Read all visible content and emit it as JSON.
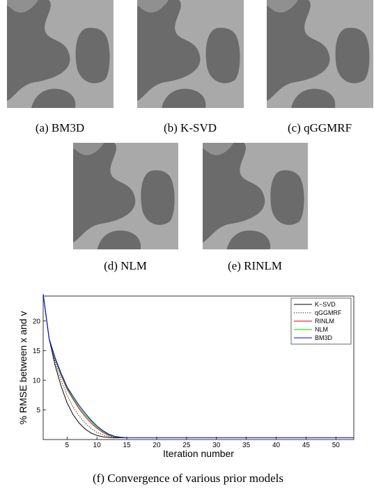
{
  "panels": [
    {
      "caption": "(a) BM3D"
    },
    {
      "caption": "(b) K-SVD"
    },
    {
      "caption": "(c) qGGMRF"
    },
    {
      "caption": "(d) NLM"
    },
    {
      "caption": "(e) RINLM"
    }
  ],
  "chart_data": {
    "type": "line",
    "caption": "(f) Convergence of various prior models",
    "x_label": "Iteration number",
    "y_label": "% RMSE between x and v",
    "x": [
      1,
      2,
      3,
      4,
      5,
      6,
      7,
      8,
      9,
      10,
      11,
      12,
      13,
      14,
      15,
      16,
      20,
      30,
      40,
      53
    ],
    "xlim": [
      1,
      53
    ],
    "ylim": [
      0,
      24.2
    ],
    "xticks": [
      5,
      10,
      15,
      20,
      25,
      30,
      35,
      40,
      45,
      50
    ],
    "yticks": [
      5,
      10,
      15,
      20
    ],
    "grid": false,
    "legend": "upper right",
    "series": [
      {
        "name": "K−SVD",
        "color": "#000000",
        "dash": "solid",
        "values": [
          24.5,
          17,
          12.5,
          9,
          6.2,
          4.2,
          2.8,
          1.8,
          1.1,
          0.7,
          0.45,
          0.35,
          0.3,
          0.3,
          0.3,
          0.3,
          0.3,
          0.3,
          0.3,
          0.3
        ]
      },
      {
        "name": "qGGMRF",
        "color": "#000000",
        "dash": "dotted",
        "values": [
          24.5,
          16.8,
          13,
          10,
          7.5,
          5.5,
          4,
          2.8,
          1.9,
          1.2,
          0.8,
          0.5,
          0.4,
          0.35,
          0.3,
          0.3,
          0.3,
          0.3,
          0.3,
          0.3
        ]
      },
      {
        "name": "RINLM",
        "color": "#e00000",
        "dash": "solid",
        "values": [
          24.5,
          17,
          13.5,
          10.8,
          8.5,
          6.8,
          5.2,
          3.9,
          2.8,
          1.9,
          1.2,
          0.7,
          0.45,
          0.35,
          0.3,
          0.3,
          0.3,
          0.3,
          0.3,
          0.3
        ]
      },
      {
        "name": "NLM",
        "color": "#00d000",
        "dash": "solid",
        "values": [
          24.5,
          17,
          13.6,
          11,
          8.7,
          7,
          5.5,
          4.2,
          3.1,
          2.1,
          1.4,
          0.8,
          0.5,
          0.35,
          0.3,
          0.3,
          0.3,
          0.3,
          0.3,
          0.3
        ]
      },
      {
        "name": "BM3D",
        "color": "#0000e0",
        "dash": "solid",
        "values": [
          24.5,
          17,
          13.8,
          11.2,
          8.9,
          7.3,
          5.8,
          4.5,
          3.3,
          2.3,
          1.5,
          0.9,
          0.55,
          0.4,
          0.3,
          0.3,
          0.3,
          0.3,
          0.3,
          0.3
        ]
      }
    ]
  }
}
